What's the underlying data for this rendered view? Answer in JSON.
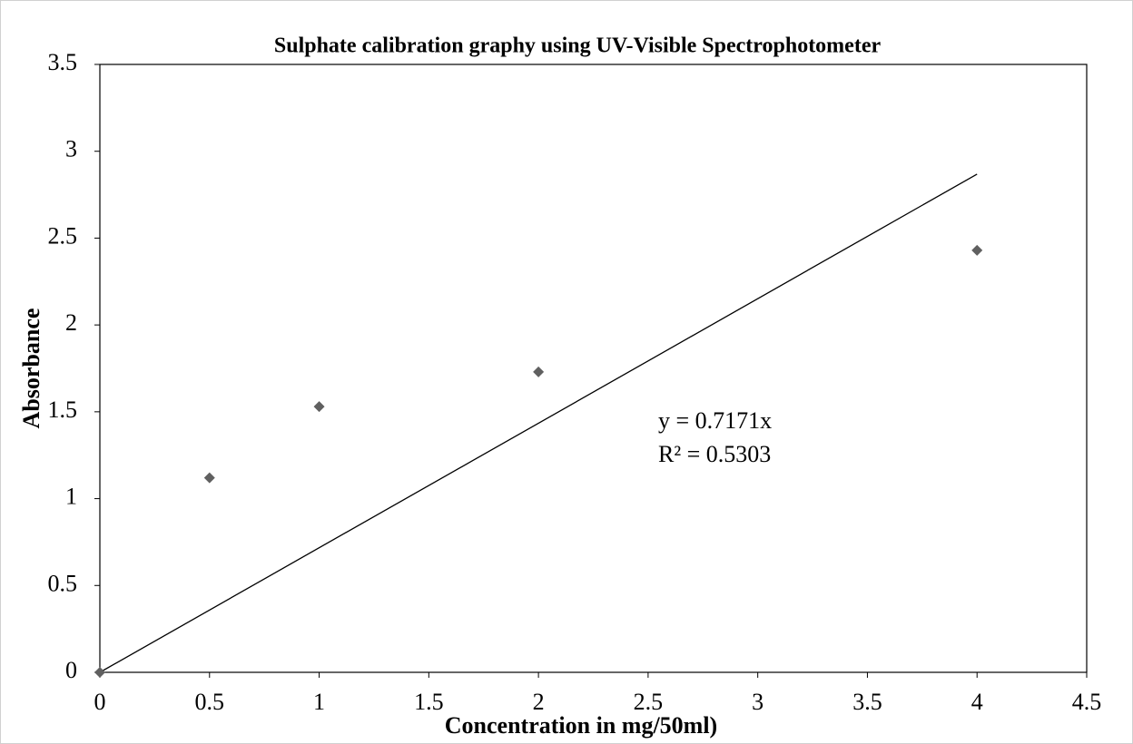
{
  "chart_data": {
    "type": "scatter",
    "title": "Sulphate calibration graphy using UV-Visible Spectrophotometer",
    "x_label": "Concentration in mg/50ml)",
    "y_label": "Absorbance",
    "series": [
      {
        "name": "Absorbance",
        "color": "#606060",
        "x": [
          0,
          0.5,
          1,
          2,
          4
        ],
        "values": [
          0,
          1.12,
          1.53,
          1.73,
          2.43
        ]
      }
    ],
    "trendline": {
      "slope": 0.7171,
      "equation": "y = 0.7171x",
      "r2": "R² = 0.5303"
    },
    "xlim": [
      0,
      4.5
    ],
    "ylim": [
      0,
      3.5
    ],
    "xticks": [
      0,
      0.5,
      1,
      1.5,
      2,
      2.5,
      3,
      3.5,
      4,
      4.5
    ],
    "yticks": [
      0,
      0.5,
      1,
      1.5,
      2,
      2.5,
      3,
      3.5
    ],
    "grid": false
  }
}
